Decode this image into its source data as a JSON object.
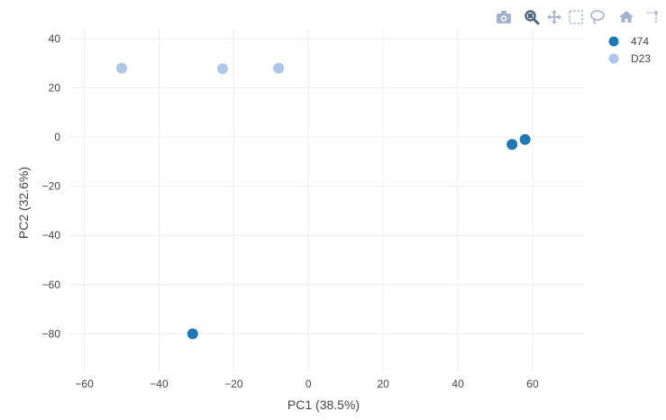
{
  "modebar": {
    "buttons": [
      {
        "name": "camera-icon",
        "title": "Download plot as a png"
      },
      {
        "name": "zoom-icon",
        "title": "Zoom",
        "active": true
      },
      {
        "name": "pan-icon",
        "title": "Pan"
      },
      {
        "name": "box-select-icon",
        "title": "Box Select"
      },
      {
        "name": "lasso-select-icon",
        "title": "Lasso Select"
      },
      {
        "name": "home-icon",
        "title": "Reset axes"
      },
      {
        "name": "spike-lines-icon",
        "title": "Toggle Spike Lines"
      }
    ],
    "icon_color": "#a3b3cf",
    "active_color": "#506784"
  },
  "chart_data": {
    "type": "scatter",
    "xlabel": "PC1 (38.5%)",
    "ylabel": "PC2 (32.6%)",
    "xlim": [
      -64,
      74
    ],
    "ylim": [
      -96,
      44
    ],
    "xticks": [
      -60,
      -40,
      -20,
      0,
      20,
      40,
      60
    ],
    "xtick_labels": [
      "−60",
      "−40",
      "−20",
      "0",
      "20",
      "40",
      "60"
    ],
    "yticks": [
      40,
      20,
      0,
      -20,
      -40,
      -60,
      -80
    ],
    "ytick_labels": [
      "40",
      "20",
      "0",
      "−20",
      "−40",
      "−60",
      "−80"
    ],
    "grid": true,
    "legend_position": "top-right",
    "series": [
      {
        "name": "474",
        "color": "#1f77b4",
        "points": [
          {
            "x": 54.5,
            "y": -3
          },
          {
            "x": 58,
            "y": -1
          },
          {
            "x": -31,
            "y": -80
          }
        ]
      },
      {
        "name": "D23",
        "color": "#aec7e8",
        "points": [
          {
            "x": -50,
            "y": 28
          },
          {
            "x": -23,
            "y": 27.8
          },
          {
            "x": -8,
            "y": 28
          }
        ]
      }
    ]
  }
}
